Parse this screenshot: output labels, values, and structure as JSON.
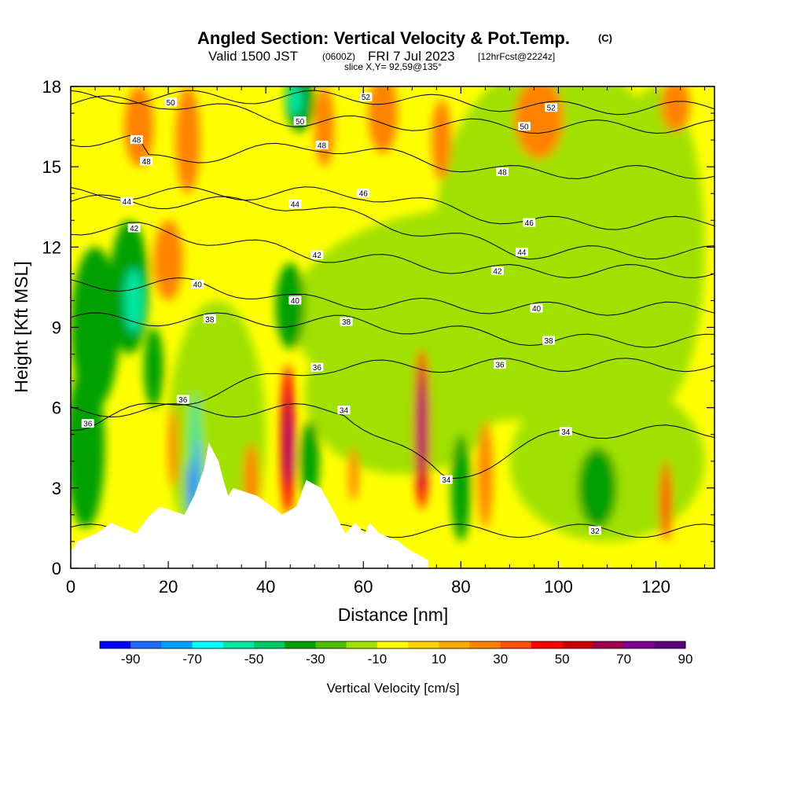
{
  "chart_data": {
    "type": "contour-section",
    "title": "Angled Section: Vertical Velocity & Pot.Temp.",
    "title_suffix": "(C)",
    "subtitle_prefix": "Valid 1500 JST",
    "subtitle_utc": "(0600Z)",
    "subtitle_date": "FRI 7 Jul 2023",
    "subtitle_fcst": "[12hrFcst@2224z]",
    "slice_info": "slice X,Y= 92,59@135°",
    "xlabel": "Distance [nm]",
    "ylabel": "Height [Kft MSL]",
    "xlim": [
      0,
      132
    ],
    "ylim": [
      0,
      18
    ],
    "x_ticks": [
      0,
      20,
      40,
      60,
      80,
      100,
      120
    ],
    "y_ticks": [
      0,
      3,
      6,
      9,
      12,
      15,
      18
    ],
    "colorbar": {
      "label": "Vertical Velocity [cm/s]",
      "tick_labels": [
        "-90",
        "-70",
        "-50",
        "-30",
        "-10",
        "10",
        "30",
        "50",
        "70",
        "90"
      ],
      "colors": [
        "#0000ff",
        "#1e6aff",
        "#00a0ff",
        "#00ffff",
        "#00e6a0",
        "#00c864",
        "#00a000",
        "#50be00",
        "#a0e100",
        "#ffff00",
        "#ffd200",
        "#ffaa00",
        "#ff8200",
        "#ff5000",
        "#ff0000",
        "#c80000",
        "#a0004b",
        "#7d0096",
        "#5a0078"
      ]
    },
    "theta_contour_labels": [
      {
        "text": "50",
        "x": 20.5,
        "y": 17.4
      },
      {
        "text": "52",
        "x": 60.5,
        "y": 17.6
      },
      {
        "text": "52",
        "x": 98.5,
        "y": 17.2
      },
      {
        "text": "50",
        "x": 47,
        "y": 16.7
      },
      {
        "text": "50",
        "x": 93,
        "y": 16.5
      },
      {
        "text": "48",
        "x": 13.5,
        "y": 16.0
      },
      {
        "text": "48",
        "x": 51.5,
        "y": 15.8
      },
      {
        "text": "48",
        "x": 15.5,
        "y": 15.2
      },
      {
        "text": "48",
        "x": 88.5,
        "y": 14.8
      },
      {
        "text": "46",
        "x": 60,
        "y": 14.0
      },
      {
        "text": "46",
        "x": 94,
        "y": 12.9
      },
      {
        "text": "44",
        "x": 11.5,
        "y": 13.7
      },
      {
        "text": "44",
        "x": 46,
        "y": 13.6
      },
      {
        "text": "44",
        "x": 92.5,
        "y": 11.8
      },
      {
        "text": "42",
        "x": 13,
        "y": 12.7
      },
      {
        "text": "42",
        "x": 50.5,
        "y": 11.7
      },
      {
        "text": "42",
        "x": 87.5,
        "y": 11.1
      },
      {
        "text": "40",
        "x": 26,
        "y": 10.6
      },
      {
        "text": "40",
        "x": 46,
        "y": 10.0
      },
      {
        "text": "40",
        "x": 95.5,
        "y": 9.7
      },
      {
        "text": "38",
        "x": 28.5,
        "y": 9.3
      },
      {
        "text": "38",
        "x": 56.5,
        "y": 9.2
      },
      {
        "text": "38",
        "x": 98,
        "y": 8.5
      },
      {
        "text": "36",
        "x": 50.5,
        "y": 7.5
      },
      {
        "text": "36",
        "x": 88,
        "y": 7.6
      },
      {
        "text": "36",
        "x": 23,
        "y": 6.3
      },
      {
        "text": "36",
        "x": 3.5,
        "y": 5.4
      },
      {
        "text": "34",
        "x": 56,
        "y": 5.9
      },
      {
        "text": "34",
        "x": 101.5,
        "y": 5.1
      },
      {
        "text": "34",
        "x": 77,
        "y": 3.3
      },
      {
        "text": "32",
        "x": 107.5,
        "y": 1.4
      }
    ],
    "theta_contour_levels": [
      32,
      34,
      36,
      38,
      40,
      42,
      44,
      46,
      48,
      50,
      52
    ],
    "terrain_profile": [
      [
        0,
        0.6
      ],
      [
        1.3,
        1.0
      ],
      [
        5.3,
        1.3
      ],
      [
        8.3,
        1.7
      ],
      [
        13.3,
        1.3
      ],
      [
        16.3,
        2.0
      ],
      [
        18.3,
        2.3
      ],
      [
        23.3,
        2.0
      ],
      [
        25.3,
        2.7
      ],
      [
        27.3,
        3.7
      ],
      [
        28.3,
        4.7
      ],
      [
        30.3,
        4.0
      ],
      [
        31.3,
        3.3
      ],
      [
        32.3,
        2.7
      ],
      [
        33.3,
        3.0
      ],
      [
        38.3,
        2.7
      ],
      [
        41.3,
        2.3
      ],
      [
        43.3,
        2.0
      ],
      [
        46.3,
        2.3
      ],
      [
        48.3,
        3.3
      ],
      [
        51.3,
        3.0
      ],
      [
        54.3,
        2.0
      ],
      [
        56.3,
        1.3
      ],
      [
        58.3,
        1.7
      ],
      [
        60.3,
        1.3
      ],
      [
        61.3,
        1.7
      ],
      [
        63.3,
        1.3
      ],
      [
        67.3,
        1.0
      ],
      [
        69.3,
        0.7
      ],
      [
        73.3,
        0.3
      ]
    ]
  }
}
